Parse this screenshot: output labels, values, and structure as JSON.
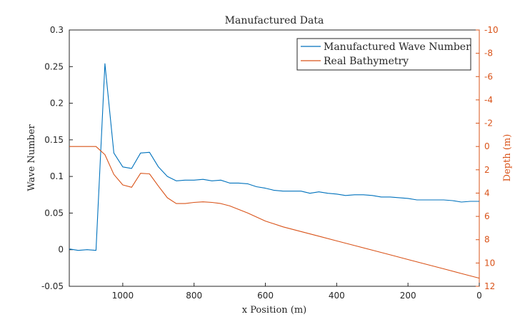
{
  "chart_data": {
    "type": "line",
    "title": "Manufactured Data",
    "xlabel": "x Position (m)",
    "ylabel_left": "Wave Number",
    "ylabel_right": "Depth (m)",
    "xlim": [
      0,
      1150
    ],
    "x_reversed": true,
    "ylim_left": [
      -0.05,
      0.3
    ],
    "ylim_right": [
      -10,
      12
    ],
    "right_axis_reversed": true,
    "xticks": [
      1000,
      800,
      600,
      400,
      200,
      0
    ],
    "yticks_left": [
      -0.05,
      0,
      0.05,
      0.1,
      0.15,
      0.2,
      0.25,
      0.3
    ],
    "yticks_left_labels": [
      "-0.05",
      "0",
      "0.05",
      "0.1",
      "0.15",
      "0.2",
      "0.25",
      "0.3"
    ],
    "yticks_right": [
      -10,
      -8,
      -6,
      -4,
      -2,
      0,
      2,
      4,
      6,
      8,
      10,
      12
    ],
    "legend_position": "top-right",
    "grid": false,
    "colors": {
      "axis": "#262626",
      "left_axis": "#262626",
      "right_axis": "#d95319"
    },
    "series": [
      {
        "name": "Manufactured Wave Number",
        "axis": "left",
        "color": "#0072bd",
        "x": [
          1150,
          1125,
          1100,
          1075,
          1050,
          1025,
          1000,
          975,
          950,
          925,
          900,
          875,
          850,
          825,
          800,
          775,
          750,
          725,
          700,
          675,
          650,
          625,
          600,
          575,
          550,
          525,
          500,
          475,
          450,
          425,
          400,
          375,
          350,
          325,
          300,
          275,
          250,
          225,
          200,
          175,
          150,
          125,
          100,
          75,
          50,
          25,
          0
        ],
        "values": [
          0.001,
          -0.001,
          0.0,
          -0.001,
          0.254,
          0.132,
          0.113,
          0.111,
          0.132,
          0.133,
          0.113,
          0.1,
          0.094,
          0.095,
          0.095,
          0.096,
          0.094,
          0.095,
          0.091,
          0.091,
          0.09,
          0.086,
          0.084,
          0.081,
          0.08,
          0.08,
          0.08,
          0.077,
          0.079,
          0.077,
          0.076,
          0.074,
          0.075,
          0.075,
          0.074,
          0.072,
          0.072,
          0.071,
          0.07,
          0.068,
          0.068,
          0.068,
          0.068,
          0.067,
          0.065,
          0.066,
          0.066
        ]
      },
      {
        "name": "Real Bathymetry",
        "axis": "right",
        "color": "#d95319",
        "x": [
          1150,
          1125,
          1100,
          1075,
          1050,
          1025,
          1000,
          975,
          950,
          925,
          900,
          875,
          850,
          825,
          800,
          775,
          750,
          725,
          700,
          650,
          600,
          550,
          500,
          450,
          400,
          350,
          300,
          250,
          200,
          150,
          100,
          50,
          0
        ],
        "values": [
          0.0,
          0.0,
          0.0,
          0.0,
          0.7,
          2.4,
          3.3,
          3.5,
          2.3,
          2.35,
          3.4,
          4.4,
          4.9,
          4.9,
          4.8,
          4.75,
          4.8,
          4.9,
          5.1,
          5.7,
          6.4,
          6.9,
          7.3,
          7.7,
          8.1,
          8.5,
          8.9,
          9.3,
          9.7,
          10.1,
          10.5,
          10.9,
          11.3
        ]
      }
    ]
  }
}
